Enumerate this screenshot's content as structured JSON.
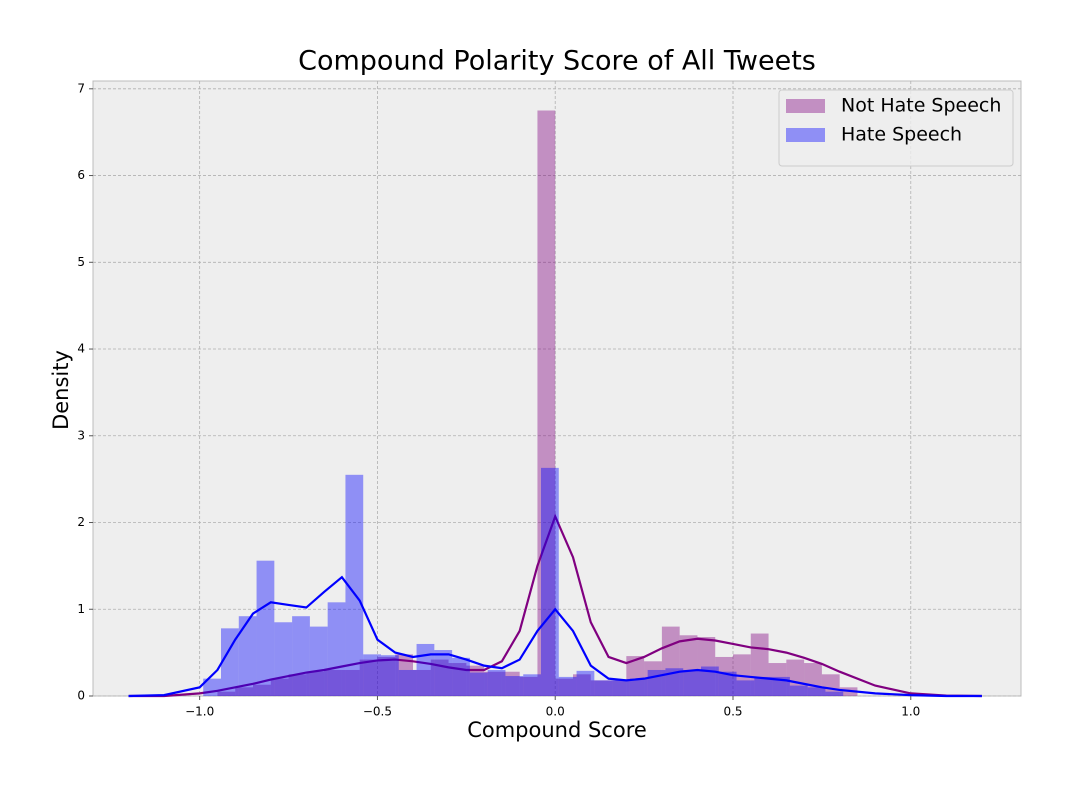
{
  "chart_data": {
    "type": "histogram",
    "title": "Compound Polarity Score of All Tweets",
    "x_label": "Compound Score",
    "y_label": "Density",
    "xlim": [
      -1.3,
      1.31
    ],
    "ylim": [
      0,
      7.09
    ],
    "xticks": [
      {
        "value": -1,
        "label": "−1.0"
      },
      {
        "value": -0.5,
        "label": "−0.5"
      },
      {
        "value": 0,
        "label": "0.0"
      },
      0.5,
      {
        "value": 1,
        "label": "1.0"
      }
    ],
    "yticks": [
      0,
      1,
      2,
      3,
      4,
      5,
      6,
      7
    ],
    "grid": true,
    "legend": "upper right",
    "series": [
      {
        "name": "Not Hate Speech",
        "color": "purple",
        "bins": [
          -0.95,
          -0.9,
          -0.85,
          -0.8,
          -0.75,
          -0.7,
          -0.65,
          -0.6,
          -0.55,
          -0.5,
          -0.45,
          -0.4,
          -0.35,
          -0.3,
          -0.25,
          -0.2,
          -0.15,
          -0.1,
          -0.05,
          0,
          0.05,
          0.1,
          0.15,
          0.2,
          0.25,
          0.3,
          0.35,
          0.4,
          0.45,
          0.5,
          0.55,
          0.6,
          0.65,
          0.7,
          0.75,
          0.8,
          0.85
        ],
        "values": [
          0.05,
          0.1,
          0.13,
          0.2,
          0.25,
          0.28,
          0.3,
          0.3,
          0.42,
          0.45,
          0.48,
          0.3,
          0.42,
          0.38,
          0.35,
          0.28,
          0.28,
          0.22,
          6.75,
          0.2,
          0.25,
          0.18,
          0.18,
          0.46,
          0.4,
          0.8,
          0.7,
          0.68,
          0.45,
          0.48,
          0.72,
          0.38,
          0.42,
          0.38,
          0.25,
          0.1
        ],
        "kde": {
          "x": [
            -1.2,
            -1.1,
            -1.0,
            -0.95,
            -0.9,
            -0.85,
            -0.8,
            -0.75,
            -0.7,
            -0.65,
            -0.6,
            -0.55,
            -0.5,
            -0.45,
            -0.4,
            -0.35,
            -0.3,
            -0.25,
            -0.2,
            -0.15,
            -0.1,
            -0.05,
            0,
            0.05,
            0.1,
            0.15,
            0.2,
            0.25,
            0.3,
            0.35,
            0.4,
            0.45,
            0.5,
            0.55,
            0.6,
            0.65,
            0.7,
            0.75,
            0.8,
            0.9,
            1.0,
            1.1,
            1.2
          ],
          "y": [
            0,
            0,
            0.03,
            0.06,
            0.1,
            0.14,
            0.19,
            0.23,
            0.27,
            0.3,
            0.34,
            0.38,
            0.41,
            0.42,
            0.4,
            0.37,
            0.33,
            0.3,
            0.3,
            0.4,
            0.75,
            1.5,
            2.07,
            1.6,
            0.85,
            0.45,
            0.38,
            0.45,
            0.55,
            0.63,
            0.66,
            0.64,
            0.6,
            0.56,
            0.54,
            0.5,
            0.44,
            0.37,
            0.28,
            0.12,
            0.03,
            0.005,
            0
          ]
        }
      },
      {
        "name": "Hate Speech",
        "color": "blue",
        "bins": [
          -0.99,
          -0.94,
          -0.89,
          -0.84,
          -0.79,
          -0.74,
          -0.69,
          -0.64,
          -0.59,
          -0.54,
          -0.49,
          -0.44,
          -0.39,
          -0.34,
          -0.29,
          -0.24,
          -0.19,
          -0.14,
          -0.09,
          -0.04,
          0.01,
          0.06,
          0.11,
          0.16,
          0.21,
          0.26,
          0.31,
          0.36,
          0.41,
          0.46,
          0.51,
          0.56,
          0.61,
          0.66,
          0.71,
          0.76,
          0.81
        ],
        "values": [
          0.2,
          0.78,
          0.92,
          1.56,
          0.85,
          0.92,
          0.8,
          1.08,
          2.55,
          0.48,
          0.47,
          0.3,
          0.6,
          0.53,
          0.44,
          0.27,
          0.3,
          0.23,
          0.25,
          2.63,
          0.22,
          0.29,
          0.18,
          0.18,
          0.2,
          0.3,
          0.32,
          0.3,
          0.34,
          0.28,
          0.18,
          0.22,
          0.22,
          0.12,
          0.1,
          0.05
        ],
        "kde": {
          "x": [
            -1.2,
            -1.1,
            -1.0,
            -0.95,
            -0.9,
            -0.85,
            -0.8,
            -0.75,
            -0.7,
            -0.65,
            -0.6,
            -0.55,
            -0.5,
            -0.45,
            -0.4,
            -0.35,
            -0.3,
            -0.25,
            -0.2,
            -0.15,
            -0.1,
            -0.05,
            0,
            0.05,
            0.1,
            0.15,
            0.2,
            0.25,
            0.3,
            0.35,
            0.4,
            0.45,
            0.5,
            0.55,
            0.6,
            0.65,
            0.7,
            0.75,
            0.8,
            0.9,
            1.0,
            1.1,
            1.2
          ],
          "y": [
            0,
            0.01,
            0.1,
            0.3,
            0.65,
            0.95,
            1.08,
            1.05,
            1.02,
            1.2,
            1.37,
            1.1,
            0.65,
            0.5,
            0.45,
            0.48,
            0.48,
            0.42,
            0.35,
            0.32,
            0.42,
            0.75,
            1.0,
            0.75,
            0.35,
            0.2,
            0.18,
            0.2,
            0.24,
            0.28,
            0.3,
            0.28,
            0.24,
            0.22,
            0.2,
            0.18,
            0.14,
            0.1,
            0.07,
            0.03,
            0.01,
            0,
            0
          ]
        }
      }
    ]
  }
}
